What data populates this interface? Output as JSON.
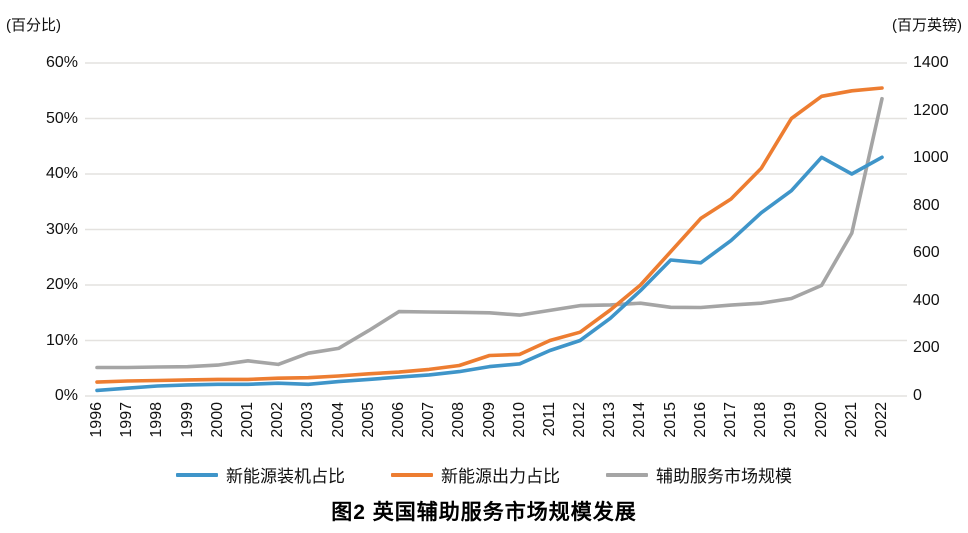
{
  "figure": {
    "title": "图2  英国辅助服务市场规模发展",
    "left_axis_unit": "(百分比)",
    "right_axis_unit": "(百万英镑)"
  },
  "colors": {
    "installed_share_line": "#3F95C9",
    "output_share_line": "#ED7D31",
    "market_size_line": "#A5A5A5",
    "gridline": "#E4E2DF",
    "text": "#111111"
  },
  "chart_data": {
    "type": "line",
    "title": "图2  英国辅助服务市场规模发展",
    "categories": [
      "1996",
      "1997",
      "1998",
      "1999",
      "2000",
      "2001",
      "2002",
      "2003",
      "2004",
      "2005",
      "2006",
      "2007",
      "2008",
      "2009",
      "2010",
      "2011",
      "2012",
      "2013",
      "2014",
      "2015",
      "2016",
      "2017",
      "2018",
      "2019",
      "2020",
      "2021",
      "2022"
    ],
    "series": [
      {
        "name": "新能源装机占比",
        "axis": "left",
        "color": "#3F95C9",
        "values": [
          1.0,
          1.4,
          1.8,
          2.0,
          2.1,
          2.1,
          2.3,
          2.1,
          2.6,
          3.0,
          3.4,
          3.8,
          4.4,
          5.3,
          5.8,
          8.2,
          10.0,
          14.0,
          19.0,
          24.5,
          24.0,
          28.0,
          33.0,
          37.0,
          43.0,
          40.0,
          43.0
        ]
      },
      {
        "name": "新能源出力占比",
        "axis": "left",
        "color": "#ED7D31",
        "values": [
          2.5,
          2.7,
          2.8,
          2.9,
          3.0,
          3.0,
          3.2,
          3.3,
          3.6,
          4.0,
          4.3,
          4.8,
          5.5,
          7.3,
          7.5,
          10.0,
          11.5,
          15.5,
          20.0,
          26.0,
          32.0,
          35.5,
          41.0,
          50.0,
          54.0,
          55.0,
          55.5
        ]
      },
      {
        "name": "辅助服务市场规模",
        "axis": "right",
        "color": "#A5A5A5",
        "values": [
          120,
          120,
          122,
          123,
          130,
          148,
          133,
          180,
          200,
          275,
          355,
          353,
          352,
          350,
          340,
          360,
          380,
          383,
          390,
          373,
          372,
          382,
          390,
          410,
          465,
          685,
          1250
        ]
      }
    ],
    "left_axis": {
      "unit": "(百分比)",
      "range": [
        0,
        60
      ],
      "ticks": [
        "60%",
        "50%",
        "40%",
        "30%",
        "20%",
        "10%",
        "0%"
      ]
    },
    "right_axis": {
      "unit": "(百万英镑)",
      "range": [
        0,
        1400
      ],
      "ticks": [
        "1400",
        "1200",
        "1000",
        "800",
        "600",
        "400",
        "200",
        "0"
      ]
    },
    "grid": true,
    "legend_position": "bottom",
    "legend": [
      "新能源装机占比",
      "新能源出力占比",
      "辅助服务市场规模"
    ]
  }
}
